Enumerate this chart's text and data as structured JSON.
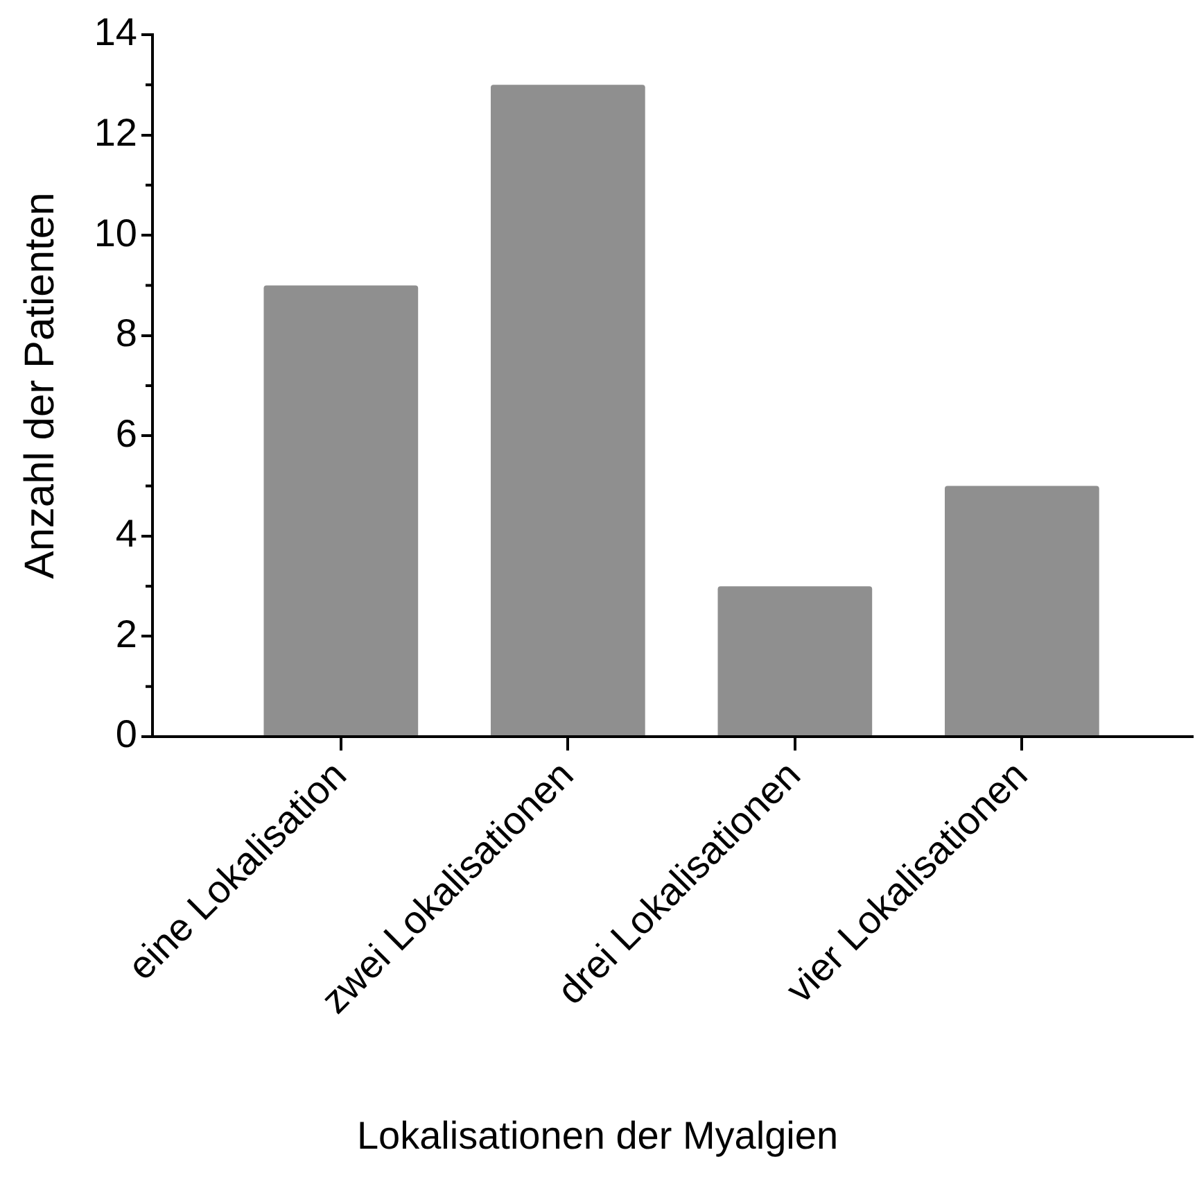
{
  "chart_data": {
    "type": "bar",
    "xlabel": "Lokalisationen der Myalgien",
    "ylabel": "Anzahl der Patienten",
    "categories": [
      "eine Lokalisation",
      "zwei Lokalisationen",
      "drei Lokalisationen",
      "vier Lokalisationen"
    ],
    "values": [
      9,
      13,
      3,
      5
    ],
    "color": "#8f8f8f",
    "ylim": [
      0,
      14
    ],
    "yticks": [
      0,
      {
        "value": 1,
        "label": null
      },
      2,
      {
        "value": 3,
        "label": null
      },
      4,
      {
        "value": 5,
        "label": null
      },
      6,
      {
        "value": 7,
        "label": null
      },
      8,
      {
        "value": 9,
        "label": null
      },
      10,
      {
        "value": 11,
        "label": null
      },
      12,
      {
        "value": 13,
        "label": null
      },
      14
    ],
    "grid": false,
    "legend": false
  }
}
